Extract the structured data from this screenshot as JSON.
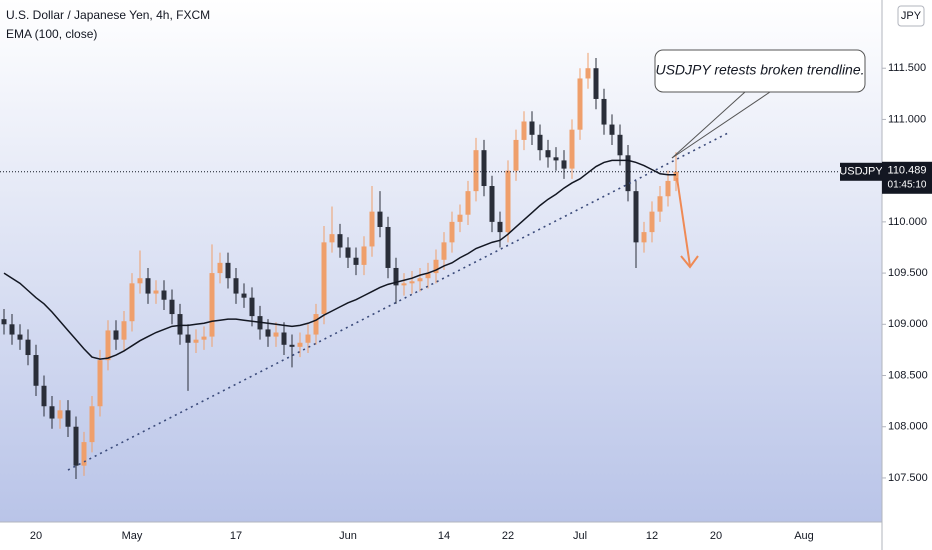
{
  "chart_data": {
    "type": "candlestick",
    "title": "U.S. Dollar / Japanese Yen, 4h, FXCM",
    "currency": "JPY",
    "up_color": "#ef9f6b",
    "down_color": "#2a2e39",
    "categories": [
      null,
      null,
      null,
      null,
      "20",
      null,
      null,
      null,
      null,
      null,
      null,
      null,
      null,
      null,
      null,
      null,
      "May",
      null,
      null,
      null,
      null,
      null,
      null,
      null,
      null,
      null,
      null,
      null,
      null,
      "17",
      null,
      null,
      null,
      null,
      null,
      null,
      null,
      null,
      null,
      null,
      null,
      null,
      null,
      "Jun",
      null,
      null,
      null,
      null,
      null,
      null,
      null,
      null,
      null,
      null,
      null,
      "14",
      null,
      null,
      null,
      null,
      null,
      null,
      null,
      "22",
      null,
      null,
      null,
      null,
      null,
      null,
      null,
      null,
      "Jul",
      null,
      null,
      null,
      null,
      null,
      null,
      null,
      null,
      "12",
      null,
      null,
      null,
      null,
      null,
      null,
      null,
      "20",
      null,
      null,
      null,
      null,
      null,
      null,
      null,
      null,
      null,
      null,
      "Aug",
      null,
      null,
      null,
      null,
      null,
      null,
      null,
      null,
      null
    ],
    "open": [
      109.05,
      109.0,
      108.9,
      108.85,
      108.7,
      108.4,
      108.2,
      108.08,
      108.16,
      108.0,
      107.62,
      107.85,
      108.2,
      108.65,
      108.94,
      108.85,
      109.03,
      109.4,
      109.45,
      109.3,
      109.33,
      109.24,
      109.1,
      108.9,
      108.82,
      108.85,
      108.88,
      109.5,
      109.6,
      109.45,
      109.3,
      109.26,
      109.08,
      108.95,
      108.88,
      108.92,
      108.8,
      108.78,
      108.82,
      108.9,
      109.1,
      109.8,
      109.88,
      109.75,
      109.65,
      109.58,
      109.76,
      110.1,
      109.95,
      109.55,
      109.38,
      109.4,
      109.42,
      109.45,
      109.5,
      109.63,
      109.8,
      110.0,
      110.07,
      110.3,
      110.7,
      110.35,
      110.0,
      109.9,
      110.5,
      110.8,
      110.98,
      110.85,
      110.7,
      110.63,
      110.6,
      110.52,
      110.9,
      111.4,
      111.5,
      111.2,
      110.95,
      110.85,
      110.65,
      110.3,
      109.8,
      109.9,
      110.1,
      110.25,
      110.4,
      null,
      null,
      null,
      null,
      null,
      null,
      null,
      null,
      null,
      null,
      null,
      null,
      null,
      null,
      null,
      null,
      null,
      null,
      null,
      null,
      null,
      null,
      null,
      null,
      null
    ],
    "high": [
      109.15,
      109.1,
      109.0,
      108.95,
      108.8,
      108.5,
      108.3,
      108.26,
      108.26,
      108.1,
      107.95,
      108.3,
      108.75,
      109.04,
      109.04,
      109.13,
      109.5,
      109.72,
      109.55,
      109.43,
      109.43,
      109.34,
      109.2,
      109.0,
      108.95,
      108.98,
      109.78,
      109.7,
      109.7,
      109.55,
      109.4,
      109.36,
      109.18,
      109.05,
      109.02,
      109.02,
      108.9,
      108.92,
      109.0,
      109.2,
      109.96,
      110.15,
      109.98,
      109.85,
      109.75,
      109.86,
      110.35,
      110.3,
      110.05,
      109.65,
      109.5,
      109.52,
      109.55,
      109.6,
      109.73,
      109.9,
      110.1,
      110.17,
      110.4,
      110.82,
      110.8,
      110.45,
      110.1,
      110.6,
      110.9,
      111.08,
      111.08,
      110.95,
      110.8,
      110.73,
      110.7,
      111.0,
      111.5,
      111.65,
      111.6,
      111.3,
      111.05,
      110.95,
      110.75,
      110.4,
      110.0,
      110.2,
      110.35,
      110.5,
      110.68,
      null,
      null,
      null,
      null,
      null,
      null,
      null,
      null,
      null,
      null,
      null,
      null,
      null,
      null,
      null,
      null,
      null,
      null,
      null,
      null,
      null,
      null,
      null,
      null,
      null
    ],
    "low": [
      108.9,
      108.8,
      108.75,
      108.6,
      108.3,
      108.1,
      107.98,
      107.98,
      107.9,
      107.49,
      107.52,
      107.75,
      108.1,
      108.55,
      108.75,
      108.75,
      108.93,
      109.3,
      109.2,
      109.2,
      109.14,
      109.0,
      108.8,
      108.35,
      108.72,
      108.75,
      108.78,
      109.4,
      109.35,
      109.2,
      109.16,
      108.98,
      108.85,
      108.78,
      108.78,
      108.7,
      108.58,
      108.68,
      108.72,
      108.8,
      109.0,
      109.7,
      109.65,
      109.55,
      109.48,
      109.48,
      109.66,
      109.85,
      109.45,
      109.2,
      109.28,
      109.3,
      109.32,
      109.35,
      109.4,
      109.53,
      109.7,
      109.9,
      109.97,
      110.2,
      110.25,
      109.9,
      109.75,
      109.8,
      110.4,
      110.7,
      110.75,
      110.6,
      110.53,
      110.5,
      110.42,
      110.42,
      110.8,
      111.3,
      111.1,
      110.85,
      110.75,
      110.55,
      110.2,
      109.55,
      109.7,
      109.8,
      110.0,
      110.15,
      110.3,
      null,
      null,
      null,
      null,
      null,
      null,
      null,
      null,
      null,
      null,
      null,
      null,
      null,
      null,
      null,
      null,
      null,
      null,
      null,
      null,
      null,
      null,
      null,
      null,
      null
    ],
    "close": [
      109.0,
      108.9,
      108.85,
      108.7,
      108.4,
      108.2,
      108.08,
      108.16,
      108.0,
      107.62,
      107.85,
      108.2,
      108.65,
      108.94,
      108.85,
      109.03,
      109.4,
      109.45,
      109.3,
      109.33,
      109.24,
      109.1,
      108.9,
      108.82,
      108.85,
      108.88,
      109.5,
      109.6,
      109.45,
      109.3,
      109.26,
      109.08,
      108.95,
      108.88,
      108.92,
      108.8,
      108.78,
      108.82,
      108.9,
      109.1,
      109.8,
      109.88,
      109.75,
      109.65,
      109.58,
      109.76,
      110.1,
      109.95,
      109.55,
      109.38,
      109.4,
      109.42,
      109.45,
      109.5,
      109.63,
      109.8,
      110.0,
      110.07,
      110.3,
      110.7,
      110.35,
      110.0,
      109.9,
      110.5,
      110.8,
      110.98,
      110.85,
      110.7,
      110.63,
      110.6,
      110.52,
      110.9,
      111.4,
      111.5,
      111.2,
      110.95,
      110.85,
      110.65,
      110.3,
      109.8,
      109.9,
      110.1,
      110.25,
      110.4,
      110.489,
      null,
      null,
      null,
      null,
      null,
      null,
      null,
      null,
      null,
      null,
      null,
      null,
      null,
      null,
      null,
      null,
      null,
      null,
      null,
      null,
      null,
      null,
      null,
      null,
      null
    ],
    "series": [
      {
        "name": "EMA (100, close)",
        "color": "#131722",
        "values": [
          109.5,
          109.45,
          109.4,
          109.33,
          109.26,
          109.2,
          109.12,
          109.03,
          108.94,
          108.85,
          108.76,
          108.68,
          108.66,
          108.67,
          108.7,
          108.74,
          108.79,
          108.84,
          108.88,
          108.92,
          108.95,
          108.98,
          108.99,
          108.99,
          109.0,
          109.01,
          109.03,
          109.04,
          109.05,
          109.05,
          109.04,
          109.03,
          109.02,
          109.01,
          109.0,
          108.99,
          108.98,
          108.99,
          109.01,
          109.04,
          109.09,
          109.13,
          109.17,
          109.21,
          109.24,
          109.28,
          109.32,
          109.36,
          109.39,
          109.41,
          109.43,
          109.45,
          109.48,
          109.5,
          109.53,
          109.57,
          109.6,
          109.65,
          109.69,
          109.74,
          109.77,
          109.8,
          109.82,
          109.88,
          109.95,
          110.02,
          110.09,
          110.16,
          110.22,
          110.27,
          110.33,
          110.38,
          110.42,
          110.48,
          110.54,
          110.58,
          110.6,
          110.6,
          110.6,
          110.58,
          110.55,
          110.51,
          110.47,
          110.46,
          110.46,
          null,
          null,
          null,
          null,
          null,
          null,
          null,
          null,
          null,
          null,
          null,
          null,
          null,
          null,
          null,
          null,
          null,
          null,
          null,
          null,
          null,
          null,
          null,
          null,
          null
        ]
      }
    ],
    "ylim": [
      107.07,
      112.166
    ],
    "yticks": [
      {
        "value": 107.5,
        "label": "107.500"
      },
      {
        "value": 108,
        "label": "108.000"
      },
      {
        "value": 108.5,
        "label": "108.500"
      },
      {
        "value": 109,
        "label": "109.000"
      },
      {
        "value": 109.5,
        "label": "109.500"
      },
      {
        "value": 110,
        "label": "110.000"
      },
      {
        "value": 110.5,
        "label": "110.500"
      },
      {
        "value": 111,
        "label": "111.000"
      },
      {
        "value": 111.5,
        "label": "111.500"
      }
    ],
    "price_label": {
      "symbol": "USDJPY",
      "value": 110.489,
      "countdown": "01:45:10"
    },
    "annotation": "USDJPY retests broken trendline."
  }
}
